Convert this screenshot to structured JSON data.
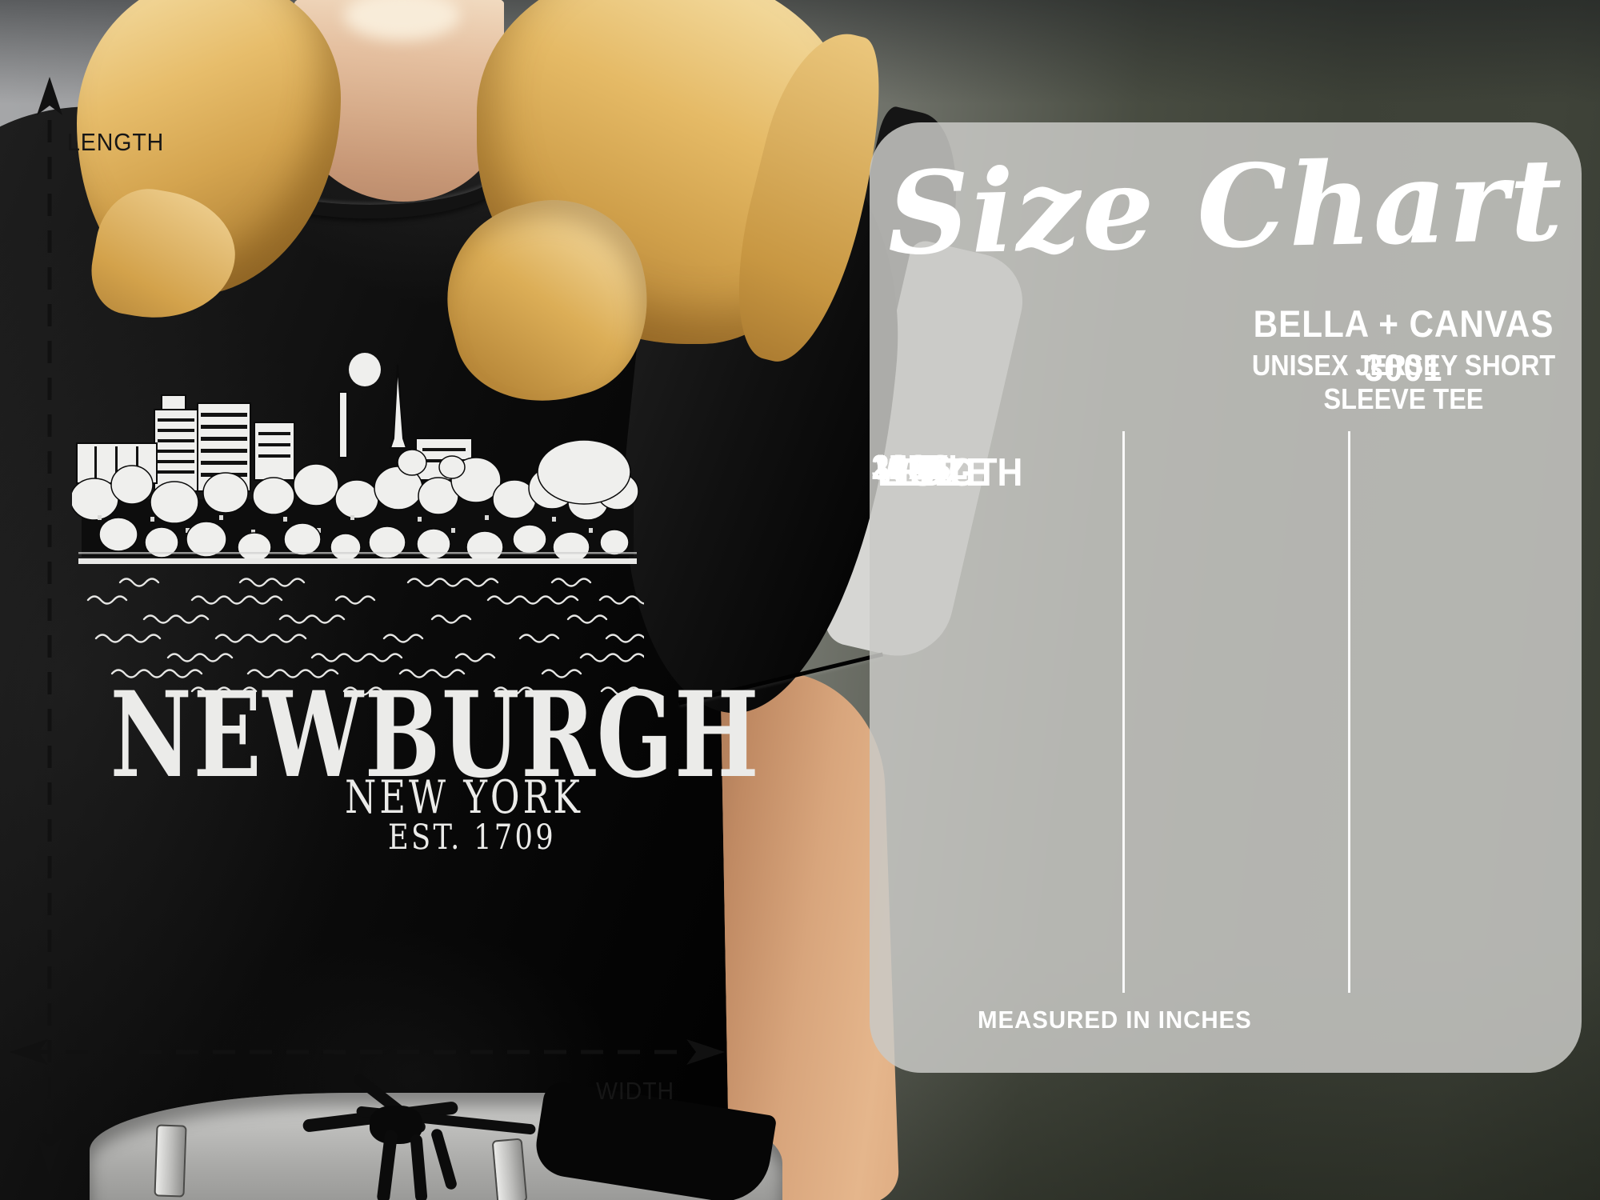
{
  "photo": {
    "measurements": {
      "length_label": "LENGTH",
      "width_label": "WIDTH"
    },
    "shirt_print": {
      "city": "NEWBURGH",
      "state": "NEW YORK",
      "established": "EST. 1709"
    }
  },
  "panel": {
    "title": "Size Chart",
    "brand": "BELLA + CANVAS 3001",
    "product": "UNISEX JERSEY SHORT SLEEVE TEE",
    "footnote": "MEASURED IN INCHES"
  },
  "chart_data": {
    "type": "table",
    "title": "Size Chart",
    "subtitle": "BELLA + CANVAS 3001 — UNISEX JERSEY SHORT SLEEVE TEE",
    "columns": [
      "SIZE",
      "WIDTH",
      "LENGTH"
    ],
    "rows": [
      [
        "XS",
        "16.5",
        "27"
      ],
      [
        "S",
        "18",
        "28"
      ],
      [
        "M",
        "20",
        "29"
      ],
      [
        "L",
        "22",
        "30"
      ],
      [
        "XL",
        "24",
        "31"
      ],
      [
        "2XL",
        "26",
        "32"
      ],
      [
        "3XL",
        "28",
        "33"
      ],
      [
        "4XL",
        "30",
        "34"
      ],
      [
        "5XL",
        "32",
        "35"
      ]
    ],
    "units": "inches"
  },
  "colors": {
    "panel_bg": "#c9c9c6",
    "panel_text": "#ffffff",
    "shirt": "#0a0a0a",
    "print": "#ebebe9",
    "annotation": "#161616",
    "wall_light": "#a6a7a9",
    "wall_dark": "#3d4137",
    "hair": "#e3b766",
    "skin": "#d8a57c",
    "pants": "#b3b3b1"
  }
}
